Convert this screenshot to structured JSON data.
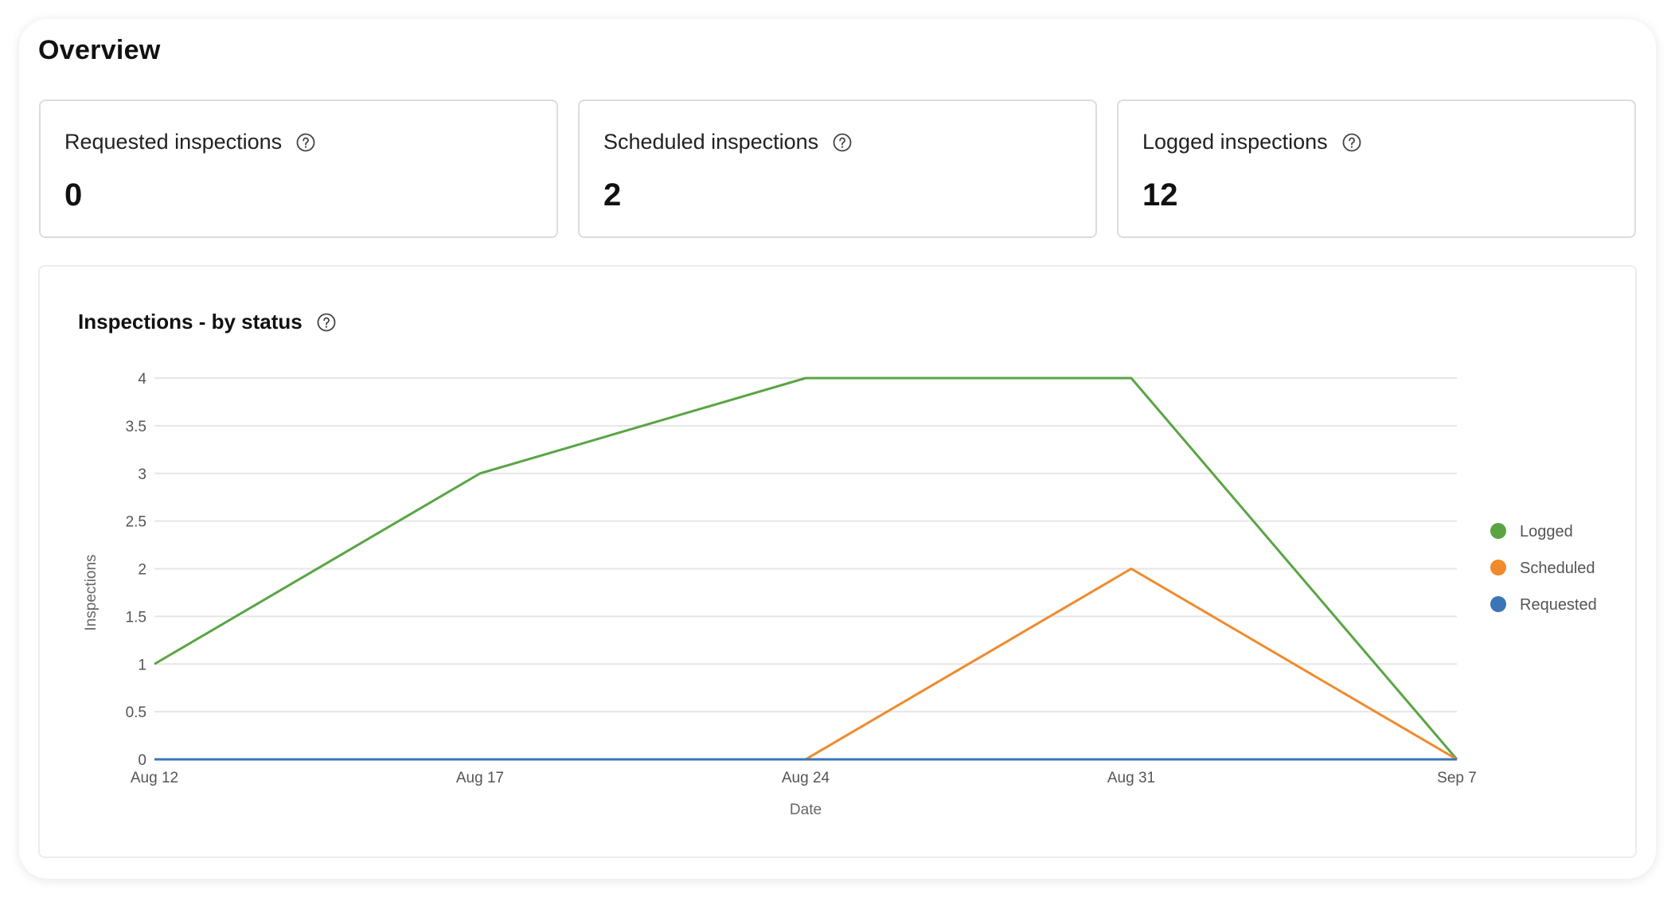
{
  "overview": {
    "title": "Overview"
  },
  "stats": [
    {
      "label": "Requested inspections",
      "value": "0"
    },
    {
      "label": "Scheduled inspections",
      "value": "2"
    },
    {
      "label": "Logged inspections",
      "value": "12"
    }
  ],
  "icons": {
    "help": "help-circle-icon"
  },
  "colors": {
    "logged": "#5aa444",
    "scheduled": "#f08a2c",
    "requested": "#3b75b8",
    "grid": "#e6e6e6"
  },
  "chart_data": {
    "type": "line",
    "title": "Inspections - by status",
    "xlabel": "Date",
    "ylabel": "Inspections",
    "x": [
      "Aug 12",
      "Aug 17",
      "Aug 24",
      "Aug 31",
      "Sep 7"
    ],
    "ylim": [
      0,
      4
    ],
    "yticks": [
      "0",
      "0.5",
      "1",
      "1.5",
      "2",
      "2.5",
      "3",
      "3.5",
      "4"
    ],
    "grid": true,
    "legend_position": "right",
    "series": [
      {
        "name": "Logged",
        "values": [
          1,
          3,
          4,
          4,
          0
        ]
      },
      {
        "name": "Scheduled",
        "values": [
          0,
          0,
          0,
          2,
          0
        ]
      },
      {
        "name": "Requested",
        "values": [
          0,
          0,
          0,
          0,
          0
        ]
      }
    ]
  }
}
